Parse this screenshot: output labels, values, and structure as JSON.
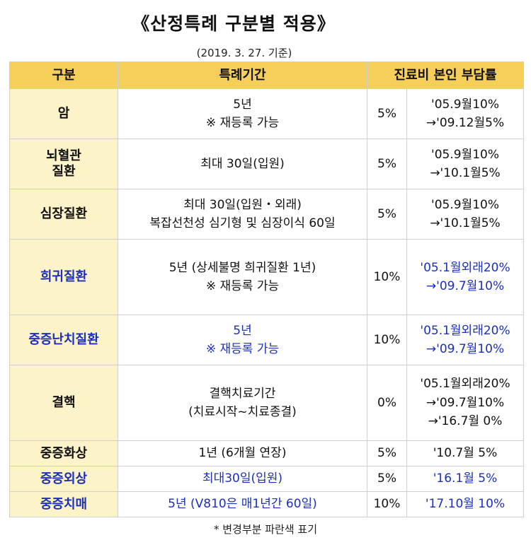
{
  "title": "《산정특례 구분별 적용》",
  "date_note": "(2019. 3. 27. 기준)",
  "headers": {
    "category": "구분",
    "period": "특례기간",
    "burden": "진료비 본인 부담률"
  },
  "rows": [
    {
      "category": "암",
      "period": [
        "5년",
        "※ 재등록 가능"
      ],
      "rate": "5%",
      "history": [
        "'05.9월10%",
        "→'09.12월5%"
      ]
    },
    {
      "category": "뇌혈관 질환",
      "period": [
        "최대 30일(입원)"
      ],
      "rate": "5%",
      "history": [
        "'05.9월10%",
        "→'10.1월5%"
      ]
    },
    {
      "category": "심장질환",
      "period": [
        "최대 30일(입원・외래)",
        "복잡선천성 심기형 및 심장이식 60일"
      ],
      "rate": "5%",
      "history": [
        "'05.9월10%",
        "→'10.1월5%"
      ]
    },
    {
      "category": "희귀질환",
      "period": [
        "5년 (상세불명 희귀질환 1년)",
        "※ 재등록 가능"
      ],
      "rate": "10%",
      "history": [
        "'05.1월외래20%",
        "→'09.7월10%"
      ]
    },
    {
      "category": "중증난치질환",
      "period": [
        "5년",
        "※ 재등록 가능"
      ],
      "rate": "10%",
      "history": [
        "'05.1월외래20%",
        "→'09.7월10%"
      ]
    },
    {
      "category": "결핵",
      "period": [
        "결핵치료기간",
        "(치료시작~치료종결)"
      ],
      "rate": "0%",
      "history": [
        "'05.1월외래20%",
        "→'09.7월10%",
        "→'16.7월 0%"
      ]
    },
    {
      "category": "중증화상",
      "period": [
        "1년 (6개월 연장)"
      ],
      "rate": "5%",
      "history": [
        "'10.7월 5%"
      ]
    },
    {
      "category": "중증외상",
      "period": [
        "최대30일(입원)"
      ],
      "rate": "5%",
      "history": [
        "'16.1월 5%"
      ]
    },
    {
      "category": "중증치매",
      "period": [
        "5년 (V810은 매1년간 60일)"
      ],
      "rate": "10%",
      "history": [
        "'17.10월 10%"
      ]
    }
  ],
  "footnote": "* 변경부분 파란색 표기",
  "colors": {
    "header_bg": "#f6cf5a",
    "category_bg": "#fcf3c8",
    "changed_text": "#1b2fb8",
    "border": "#cfcfcf"
  }
}
